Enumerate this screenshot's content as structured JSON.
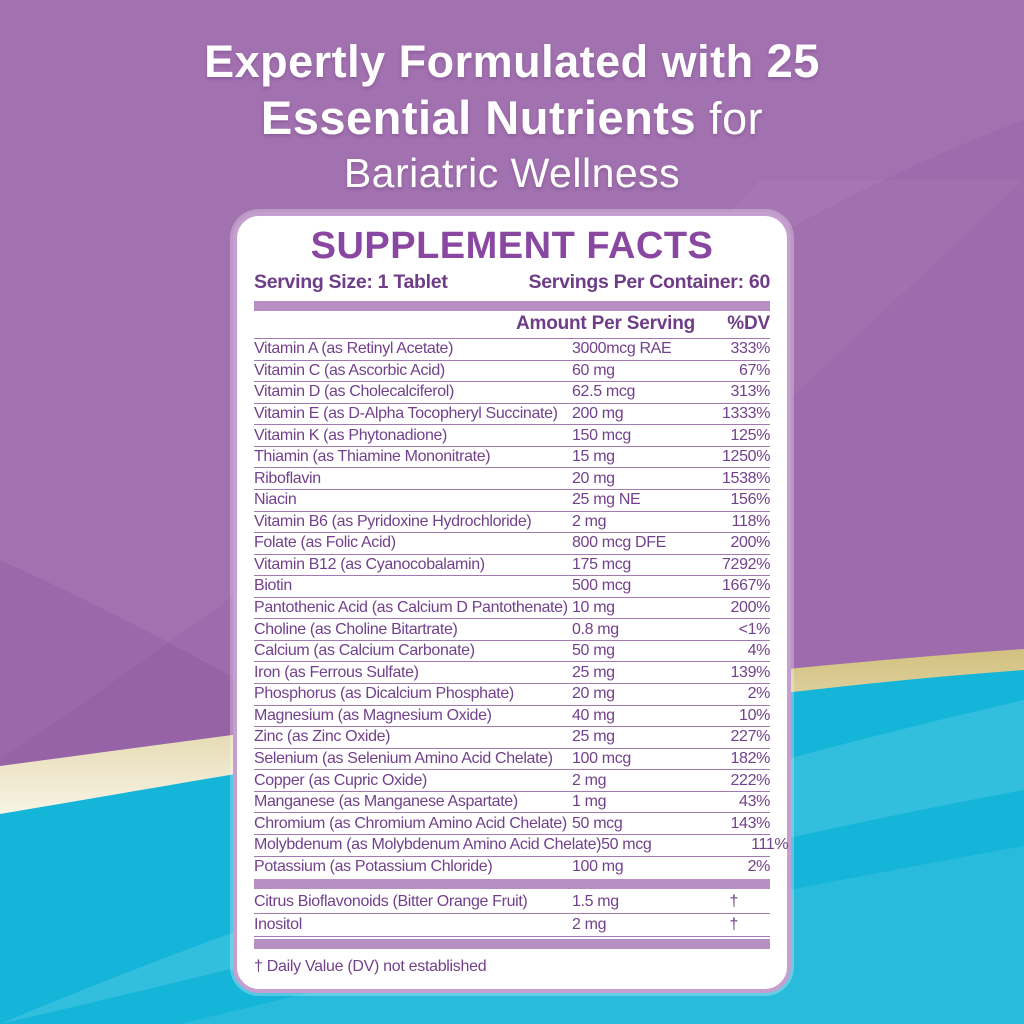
{
  "colors": {
    "purple_bg": "#9e6bac",
    "purple_swirl_dark": "#6d3a85",
    "teal": "#14b5d8",
    "gold": "#d2c17f",
    "cream": "#f8f4e6",
    "card_bg": "#ffffff",
    "card_border": "#c49fd0",
    "title_purple": "#8a47a2",
    "text_purple": "#6f3d87",
    "row_purple": "#73418c",
    "bar_purple": "#b78fc3",
    "rule_purple": "#a379b4",
    "headline_white": "#ffffff"
  },
  "headline": {
    "line1_regular": "Expertly Formulated with ",
    "line1_bold": "25",
    "line2_bold": "Essential Nutrients",
    "line2_regular": " for",
    "line3": "Bariatric Wellness"
  },
  "panel": {
    "title": "SUPPLEMENT FACTS",
    "serving_size": "Serving Size: 1 Tablet",
    "servings_per_container": "Servings Per Container: 60",
    "col_amount": "Amount Per Serving",
    "col_dv": "%DV",
    "nutrients": [
      {
        "name": "Vitamin A (as Retinyl Acetate)",
        "amount": "3000mcg RAE",
        "dv": "333%"
      },
      {
        "name": "Vitamin C (as Ascorbic Acid)",
        "amount": "60 mg",
        "dv": "67%"
      },
      {
        "name": "Vitamin D (as Cholecalciferol)",
        "amount": "62.5 mcg",
        "dv": "313%"
      },
      {
        "name": "Vitamin E (as D-Alpha Tocopheryl Succinate)",
        "amount": "200 mg",
        "dv": "1333%"
      },
      {
        "name": "Vitamin K (as Phytonadione)",
        "amount": "150 mcg",
        "dv": "125%"
      },
      {
        "name": "Thiamin (as Thiamine Mononitrate)",
        "amount": "15 mg",
        "dv": "1250%"
      },
      {
        "name": "Riboflavin",
        "amount": "20 mg",
        "dv": "1538%"
      },
      {
        "name": "Niacin",
        "amount": "25 mg NE",
        "dv": "156%"
      },
      {
        "name": "Vitamin B6 (as Pyridoxine Hydrochloride)",
        "amount": "2 mg",
        "dv": "118%"
      },
      {
        "name": "Folate (as Folic Acid)",
        "amount": "800 mcg DFE",
        "dv": "200%"
      },
      {
        "name": "Vitamin B12 (as Cyanocobalamin)",
        "amount": "175 mcg",
        "dv": "7292%"
      },
      {
        "name": "Biotin",
        "amount": "500 mcg",
        "dv": "1667%"
      },
      {
        "name": "Pantothenic Acid (as Calcium D Pantothenate)",
        "amount": "10 mg",
        "dv": "200%"
      },
      {
        "name": "Choline (as Choline Bitartrate)",
        "amount": "0.8 mg",
        "dv": "<1%"
      },
      {
        "name": "Calcium (as Calcium Carbonate)",
        "amount": "50 mg",
        "dv": "4%"
      },
      {
        "name": "Iron (as Ferrous Sulfate)",
        "amount": "25 mg",
        "dv": "139%"
      },
      {
        "name": "Phosphorus (as Dicalcium Phosphate)",
        "amount": "20 mg",
        "dv": "2%"
      },
      {
        "name": "Magnesium (as Magnesium Oxide)",
        "amount": "40 mg",
        "dv": "10%"
      },
      {
        "name": "Zinc (as Zinc Oxide)",
        "amount": "25 mg",
        "dv": "227%"
      },
      {
        "name": "Selenium (as Selenium Amino Acid Chelate)",
        "amount": "100 mcg",
        "dv": "182%"
      },
      {
        "name": "Copper (as Cupric Oxide)",
        "amount": "2 mg",
        "dv": "222%"
      },
      {
        "name": "Manganese (as Manganese Aspartate)",
        "amount": "1 mg",
        "dv": "43%"
      },
      {
        "name": "Chromium (as Chromium Amino Acid Chelate)",
        "amount": "50 mcg",
        "dv": "143%"
      },
      {
        "name": "Molybdenum (as Molybdenum Amino Acid Chelate)",
        "amount": "50 mcg",
        "dv": "111%"
      },
      {
        "name": "Potassium (as Potassium Chloride)",
        "amount": "100 mg",
        "dv": "2%"
      }
    ],
    "other_nutrients": [
      {
        "name": "Citrus Bioflavonoids (Bitter Orange Fruit)",
        "amount": "1.5 mg",
        "dv": "†"
      },
      {
        "name": "Inositol",
        "amount": "2 mg",
        "dv": "†"
      }
    ],
    "footnote": "† Daily Value (DV) not established"
  }
}
